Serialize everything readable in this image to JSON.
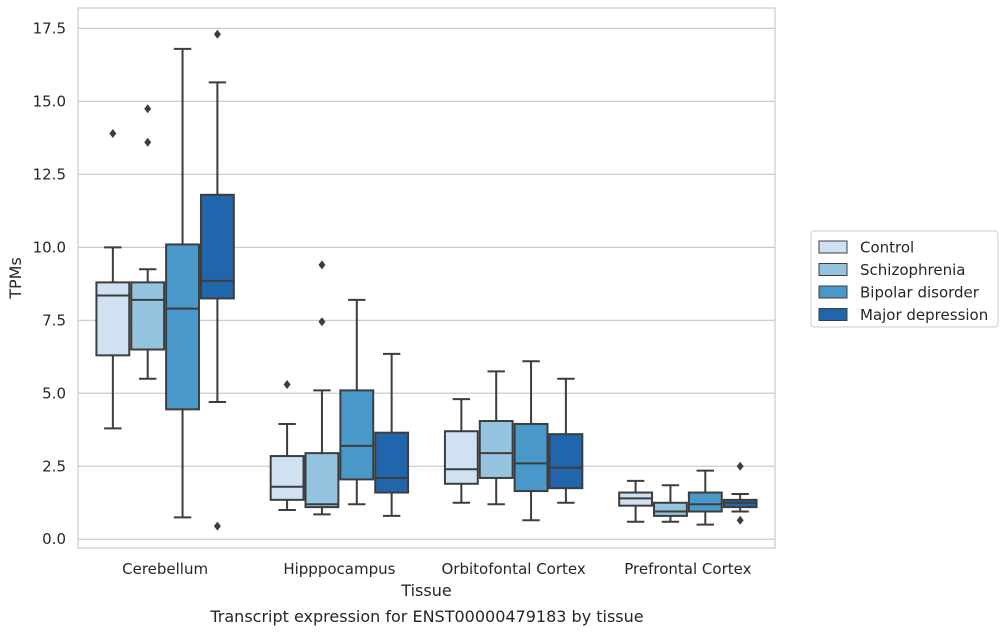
{
  "caption": "Transcript expression for ENST00000479183 by tissue",
  "chart_data": {
    "type": "box",
    "xlabel": "Tissue",
    "ylabel": "TPMs",
    "ylim": [
      -0.3,
      18.2
    ],
    "yticks": [
      "0.0",
      "2.5",
      "5.0",
      "7.5",
      "10.0",
      "12.5",
      "15.0",
      "17.5"
    ],
    "ytick_values": [
      0,
      2.5,
      5,
      7.5,
      10,
      12.5,
      15,
      17.5
    ],
    "grid": "horizontal",
    "legend_position": "right",
    "categories": [
      "Cerebellum",
      "Hipppocampus",
      "Orbitofontal Cortex",
      "Prefrontal Cortex"
    ],
    "series": [
      {
        "name": "Control",
        "color": "#d0e1f2",
        "boxes": [
          {
            "whislo": 3.8,
            "q1": 6.3,
            "med": 8.35,
            "q3": 8.8,
            "whishi": 10.0,
            "fliers": [
              13.9
            ]
          },
          {
            "whislo": 1.0,
            "q1": 1.35,
            "med": 1.8,
            "q3": 2.85,
            "whishi": 3.95,
            "fliers": [
              5.3
            ]
          },
          {
            "whislo": 1.25,
            "q1": 1.9,
            "med": 2.4,
            "q3": 3.7,
            "whishi": 4.8,
            "fliers": []
          },
          {
            "whislo": 0.6,
            "q1": 1.15,
            "med": 1.4,
            "q3": 1.6,
            "whishi": 2.0,
            "fliers": []
          }
        ]
      },
      {
        "name": "Schizophrenia",
        "color": "#94c4df",
        "boxes": [
          {
            "whislo": 5.5,
            "q1": 6.5,
            "med": 8.2,
            "q3": 8.8,
            "whishi": 9.25,
            "fliers": [
              13.6,
              14.75
            ]
          },
          {
            "whislo": 0.85,
            "q1": 1.1,
            "med": 1.2,
            "q3": 2.95,
            "whishi": 5.1,
            "fliers": [
              7.45,
              9.4
            ]
          },
          {
            "whislo": 1.2,
            "q1": 2.1,
            "med": 2.95,
            "q3": 4.05,
            "whishi": 5.75,
            "fliers": []
          },
          {
            "whislo": 0.6,
            "q1": 0.8,
            "med": 0.95,
            "q3": 1.25,
            "whishi": 1.85,
            "fliers": []
          }
        ]
      },
      {
        "name": "Bipolar disorder",
        "color": "#4a98c9",
        "boxes": [
          {
            "whislo": 0.75,
            "q1": 4.45,
            "med": 7.9,
            "q3": 10.1,
            "whishi": 16.8,
            "fliers": []
          },
          {
            "whislo": 1.2,
            "q1": 2.05,
            "med": 3.2,
            "q3": 5.1,
            "whishi": 8.2,
            "fliers": []
          },
          {
            "whislo": 0.65,
            "q1": 1.65,
            "med": 2.6,
            "q3": 3.95,
            "whishi": 6.1,
            "fliers": []
          },
          {
            "whislo": 0.5,
            "q1": 0.95,
            "med": 1.2,
            "q3": 1.6,
            "whishi": 2.35,
            "fliers": []
          }
        ]
      },
      {
        "name": "Major depression",
        "color": "#2166ac",
        "boxes": [
          {
            "whislo": 4.7,
            "q1": 8.25,
            "med": 8.85,
            "q3": 11.8,
            "whishi": 15.65,
            "fliers": [
              0.45,
              17.3
            ]
          },
          {
            "whislo": 0.8,
            "q1": 1.6,
            "med": 2.1,
            "q3": 3.65,
            "whishi": 6.35,
            "fliers": []
          },
          {
            "whislo": 1.25,
            "q1": 1.75,
            "med": 2.45,
            "q3": 3.6,
            "whishi": 5.5,
            "fliers": []
          },
          {
            "whislo": 0.95,
            "q1": 1.1,
            "med": 1.25,
            "q3": 1.35,
            "whishi": 1.55,
            "fliers": [
              0.65,
              2.5
            ]
          }
        ]
      }
    ]
  }
}
